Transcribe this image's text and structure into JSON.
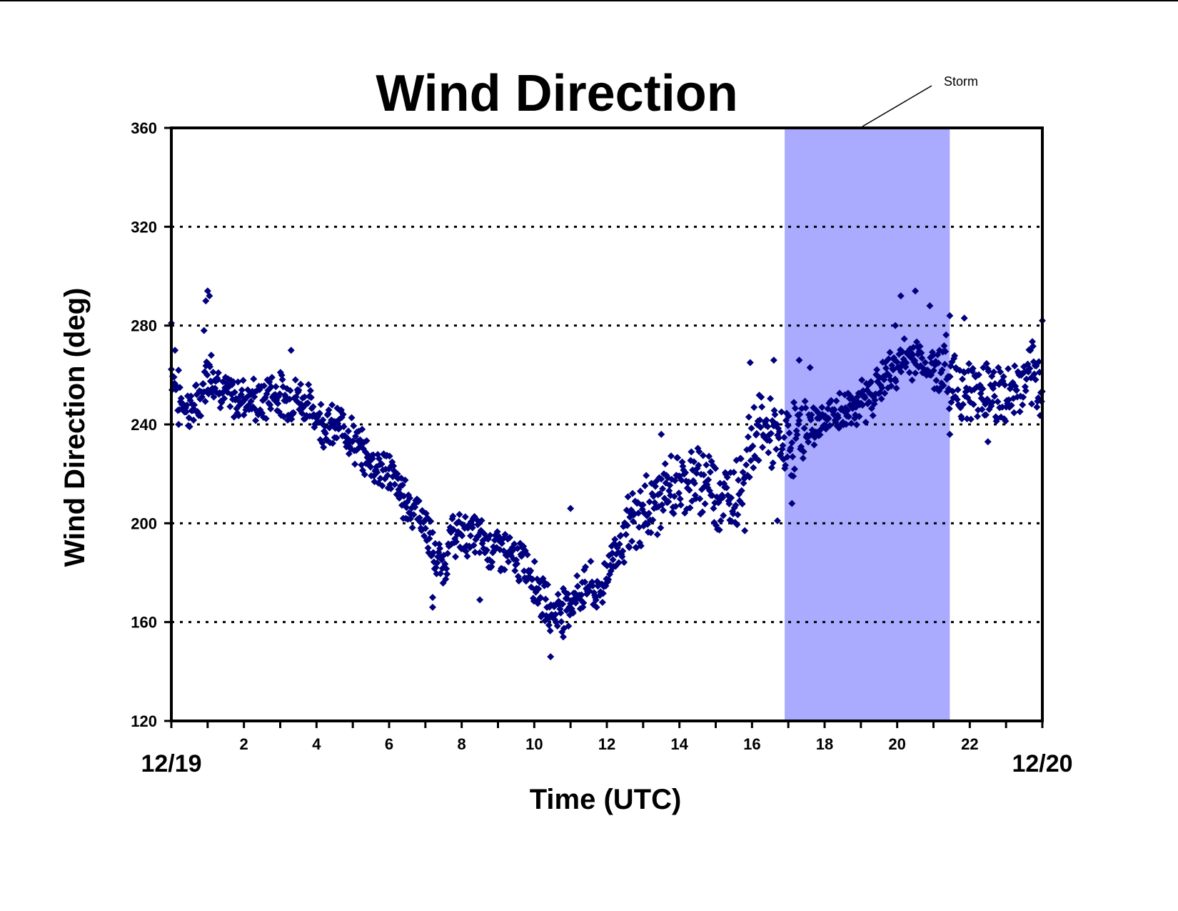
{
  "chart_data": {
    "type": "scatter",
    "title": "Wind Direction",
    "xlabel": "Time (UTC)",
    "ylabel": "Wind Direction (deg)",
    "xlim": [
      0,
      24
    ],
    "ylim": [
      120,
      360
    ],
    "y_ticks": [
      120,
      160,
      200,
      240,
      280,
      320,
      360
    ],
    "x_tick_labels": [
      {
        "x": 2,
        "label": "2"
      },
      {
        "x": 4,
        "label": "4"
      },
      {
        "x": 6,
        "label": "6"
      },
      {
        "x": 8,
        "label": "8"
      },
      {
        "x": 10,
        "label": "10"
      },
      {
        "x": 12,
        "label": "12"
      },
      {
        "x": 14,
        "label": "14"
      },
      {
        "x": 16,
        "label": "16"
      },
      {
        "x": 18,
        "label": "18"
      },
      {
        "x": 20,
        "label": "20"
      },
      {
        "x": 22,
        "label": "22"
      }
    ],
    "x_minor_ticks_every": 1,
    "date_labels": {
      "start": "12/19",
      "end": "12/20"
    },
    "gridlines": {
      "axis": "y",
      "style": "dotted",
      "values": [
        160,
        200,
        240,
        280,
        320
      ]
    },
    "shaded_region": {
      "label": "Storm",
      "x_start": 16.9,
      "x_end": 21.45,
      "color": "#aaaaff"
    },
    "marker_color": "#00007f",
    "series": [
      {
        "marker": "diamond",
        "x": [
          0.0,
          0.25,
          0.5,
          0.75,
          1.0,
          1.25,
          1.5,
          1.75,
          2.0,
          2.25,
          2.5,
          2.75,
          3.0,
          3.25,
          3.5,
          3.75,
          4.0,
          4.25,
          4.5,
          4.75,
          5.0,
          5.25,
          5.5,
          5.75,
          6.0,
          6.25,
          6.5,
          6.75,
          7.0,
          7.25,
          7.5,
          7.75,
          8.0,
          8.25,
          8.5,
          8.75,
          9.0,
          9.25,
          9.5,
          9.75,
          10.0,
          10.25,
          10.5,
          10.75,
          11.0,
          11.25,
          11.5,
          11.75,
          12.0,
          12.25,
          12.5,
          12.75,
          13.0,
          13.25,
          13.5,
          13.75,
          14.0,
          14.25,
          14.5,
          14.75,
          15.0,
          15.25,
          15.5,
          15.75,
          16.0,
          16.25,
          16.5,
          16.75,
          17.0,
          17.25,
          17.5,
          17.75,
          18.0,
          18.25,
          18.5,
          18.75,
          19.0,
          19.25,
          19.5,
          19.75,
          20.0,
          20.25,
          20.5,
          20.75,
          21.0,
          21.25,
          21.5,
          21.75,
          22.0,
          22.25,
          22.5,
          22.75,
          23.0,
          23.25,
          23.5,
          23.75,
          24.0
        ],
        "y": [
          262,
          250,
          246,
          248,
          262,
          258,
          252,
          250,
          252,
          250,
          248,
          254,
          252,
          250,
          252,
          248,
          244,
          240,
          238,
          240,
          234,
          228,
          226,
          222,
          222,
          214,
          208,
          206,
          200,
          186,
          182,
          196,
          194,
          196,
          194,
          190,
          190,
          188,
          184,
          184,
          178,
          168,
          164,
          166,
          168,
          172,
          176,
          170,
          180,
          190,
          194,
          200,
          204,
          208,
          210,
          214,
          216,
          218,
          216,
          220,
          212,
          210,
          212,
          220,
          234,
          240,
          236,
          232,
          232,
          236,
          238,
          240,
          242,
          244,
          244,
          248,
          248,
          252,
          256,
          260,
          264,
          266,
          268,
          264,
          262,
          264,
          258,
          256,
          252,
          254,
          256,
          252,
          250,
          254,
          256,
          258,
          256
        ],
        "scatter_outliers": [
          {
            "x": 0.0,
            "y": 281
          },
          {
            "x": 0.1,
            "y": 270
          },
          {
            "x": 0.2,
            "y": 240
          },
          {
            "x": 0.95,
            "y": 290
          },
          {
            "x": 1.0,
            "y": 294
          },
          {
            "x": 1.05,
            "y": 292
          },
          {
            "x": 0.9,
            "y": 278
          },
          {
            "x": 1.1,
            "y": 268
          },
          {
            "x": 3.3,
            "y": 270
          },
          {
            "x": 7.2,
            "y": 166
          },
          {
            "x": 7.2,
            "y": 170
          },
          {
            "x": 8.5,
            "y": 169
          },
          {
            "x": 10.45,
            "y": 146
          },
          {
            "x": 10.8,
            "y": 154
          },
          {
            "x": 11.0,
            "y": 206
          },
          {
            "x": 13.5,
            "y": 236
          },
          {
            "x": 15.8,
            "y": 197
          },
          {
            "x": 15.95,
            "y": 265
          },
          {
            "x": 16.6,
            "y": 266
          },
          {
            "x": 16.7,
            "y": 201
          },
          {
            "x": 17.1,
            "y": 208
          },
          {
            "x": 17.3,
            "y": 266
          },
          {
            "x": 17.6,
            "y": 263
          },
          {
            "x": 19.95,
            "y": 280
          },
          {
            "x": 20.1,
            "y": 292
          },
          {
            "x": 20.5,
            "y": 294
          },
          {
            "x": 20.9,
            "y": 288
          },
          {
            "x": 21.45,
            "y": 284
          },
          {
            "x": 21.45,
            "y": 236
          },
          {
            "x": 21.85,
            "y": 283
          },
          {
            "x": 22.5,
            "y": 233
          },
          {
            "x": 24.0,
            "y": 282
          }
        ]
      }
    ]
  }
}
